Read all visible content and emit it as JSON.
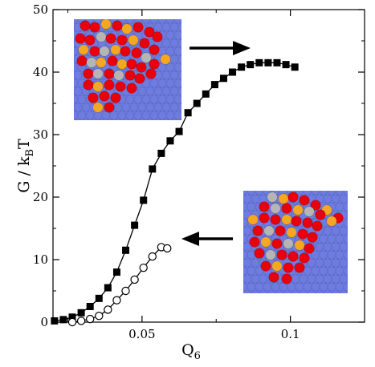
{
  "chart_data": {
    "type": "scatter",
    "ylabel": {
      "main": "G / k",
      "sub": "B",
      "tail": "T"
    },
    "xlabel": {
      "main": "Q",
      "sub": "6"
    },
    "xlim": [
      0.02,
      0.125
    ],
    "ylim": [
      0,
      50
    ],
    "x_ticks": [
      {
        "value": 0.05,
        "label": "0.05"
      },
      {
        "value": 0.1,
        "label": "0.1"
      }
    ],
    "y_ticks": [
      {
        "value": 0,
        "label": "0"
      },
      {
        "value": 10,
        "label": "10"
      },
      {
        "value": 20,
        "label": "20"
      },
      {
        "value": 30,
        "label": "30"
      },
      {
        "value": 40,
        "label": "40"
      },
      {
        "value": 50,
        "label": "50"
      }
    ],
    "grid": false,
    "series": [
      {
        "marker": "filled-square",
        "color": "#000000",
        "x": [
          0.0205,
          0.0235,
          0.0265,
          0.0295,
          0.0325,
          0.0355,
          0.0385,
          0.0415,
          0.0445,
          0.0475,
          0.0505,
          0.0535,
          0.0565,
          0.0595,
          0.0625,
          0.0655,
          0.0685,
          0.0715,
          0.0745,
          0.0775,
          0.0805,
          0.0835,
          0.0865,
          0.0895,
          0.0925,
          0.0955,
          0.0985,
          0.1015
        ],
        "y": [
          0.2,
          0.4,
          0.8,
          1.5,
          2.5,
          3.8,
          5.5,
          8.0,
          11.5,
          15.5,
          19.5,
          24.5,
          27.0,
          29.0,
          30.5,
          33.5,
          35.0,
          36.5,
          38.0,
          39.0,
          40.0,
          40.8,
          41.2,
          41.5,
          41.5,
          41.5,
          41.2,
          40.8
        ]
      },
      {
        "marker": "open-circle",
        "color": "#000000",
        "x": [
          0.0265,
          0.0295,
          0.0325,
          0.0355,
          0.0385,
          0.0415,
          0.0445,
          0.0475,
          0.0505,
          0.0535,
          0.0565,
          0.0585
        ],
        "y": [
          0.0,
          0.2,
          0.5,
          1.0,
          2.0,
          3.5,
          5.0,
          6.8,
          8.7,
          10.5,
          12.0,
          11.8
        ]
      }
    ],
    "insets": [
      {
        "position": "upper-left",
        "depicts": "cluster-snapshot",
        "arrow": "right"
      },
      {
        "position": "lower-right",
        "depicts": "cluster-snapshot",
        "arrow": "left"
      }
    ],
    "particle_colors": {
      "blue": "#6e7ce0",
      "red": "#e8000a",
      "orange": "#f5a623",
      "gray": "#b5b5b5"
    }
  }
}
